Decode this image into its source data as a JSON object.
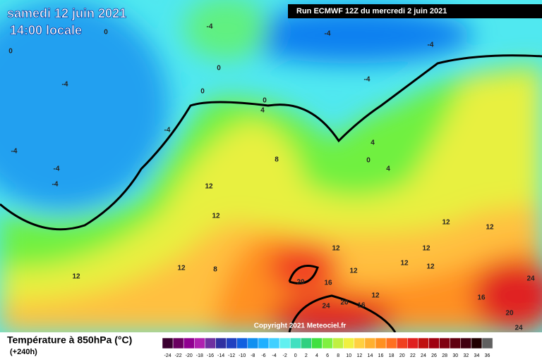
{
  "header": {
    "date": "samedi 12 juin 2021",
    "time": "14:00 locale",
    "run": "Run ECMWF 12Z du mercredi 2 juin 2021",
    "copyright": "Copyright 2021 Meteociel.fr"
  },
  "footer": {
    "title": "Température à 850hPa (°C)",
    "lead": "(+240h)"
  },
  "scale": {
    "labels": [
      -24,
      -22,
      -20,
      -18,
      -16,
      -14,
      -12,
      -10,
      -8,
      -6,
      -4,
      -2,
      0,
      2,
      4,
      6,
      8,
      10,
      12,
      14,
      16,
      18,
      20,
      22,
      24,
      26,
      28,
      30,
      32,
      34,
      36
    ],
    "colors": [
      "#3a0030",
      "#6a0060",
      "#900090",
      "#b020b0",
      "#7030a0",
      "#3030a0",
      "#2040c0",
      "#1060e0",
      "#1090f0",
      "#20b0ff",
      "#40d0ff",
      "#60f0f0",
      "#40e0c0",
      "#30d080",
      "#40e040",
      "#80f040",
      "#c0f040",
      "#f0f040",
      "#ffd040",
      "#ffb030",
      "#ff9020",
      "#ff7020",
      "#f04020",
      "#e02020",
      "#c01010",
      "#a00010",
      "#800010",
      "#600010",
      "#400010",
      "#200000",
      "#606060"
    ]
  },
  "map_labels": [
    -4,
    -4,
    -4,
    -4,
    -4,
    -4,
    -4,
    -4,
    -4,
    0,
    0,
    0,
    0,
    0,
    0,
    4,
    4,
    4,
    8,
    8,
    12,
    12,
    12,
    12,
    12,
    12,
    12,
    12,
    12,
    12,
    12,
    12,
    16,
    16,
    16,
    20,
    20,
    20,
    24,
    24,
    24
  ]
}
